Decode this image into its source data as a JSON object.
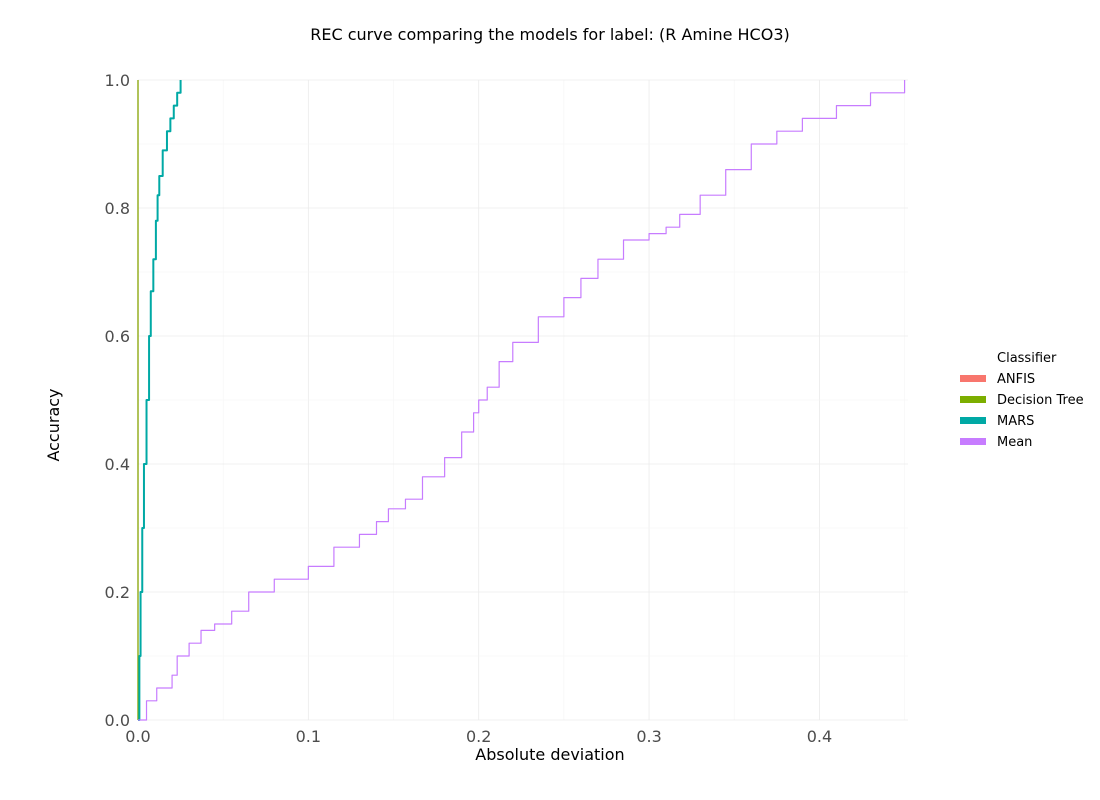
{
  "chart_data": {
    "type": "line",
    "title": "REC curve comparing the models for label: (R Amine HCO3)",
    "xlabel": "Absolute deviation",
    "ylabel": "Accuracy",
    "xlim": [
      0,
      0.452
    ],
    "ylim": [
      0,
      1.0
    ],
    "x_ticks": [
      "0.0",
      "0.1",
      "0.2",
      "0.3",
      "0.4"
    ],
    "y_ticks": [
      "0.0",
      "0.2",
      "0.4",
      "0.6",
      "0.8",
      "1.0"
    ],
    "grid": true,
    "legend": {
      "title": "Classifier",
      "placement": "right"
    },
    "series": [
      {
        "name": "ANFIS",
        "color": "#F8766D",
        "points": [
          [
            0.0,
            0.0
          ],
          [
            0.0,
            1.0
          ]
        ]
      },
      {
        "name": "Decision Tree",
        "color": "#7CAE00",
        "points": [
          [
            0.0,
            0.0
          ],
          [
            0.0,
            1.0
          ]
        ]
      },
      {
        "name": "MARS",
        "color": "#00A9A5",
        "points": [
          [
            0.0,
            0.0
          ],
          [
            0.0008,
            0.1
          ],
          [
            0.0015,
            0.2
          ],
          [
            0.0025,
            0.3
          ],
          [
            0.0035,
            0.4
          ],
          [
            0.005,
            0.5
          ],
          [
            0.0065,
            0.6
          ],
          [
            0.0075,
            0.67
          ],
          [
            0.009,
            0.72
          ],
          [
            0.0105,
            0.78
          ],
          [
            0.0115,
            0.82
          ],
          [
            0.0125,
            0.85
          ],
          [
            0.0145,
            0.89
          ],
          [
            0.017,
            0.92
          ],
          [
            0.019,
            0.94
          ],
          [
            0.021,
            0.96
          ],
          [
            0.023,
            0.98
          ],
          [
            0.025,
            1.0
          ]
        ]
      },
      {
        "name": "Mean",
        "color": "#C77CFF",
        "points": [
          [
            0.0,
            0.0
          ],
          [
            0.005,
            0.03
          ],
          [
            0.011,
            0.05
          ],
          [
            0.02,
            0.07
          ],
          [
            0.023,
            0.1
          ],
          [
            0.03,
            0.12
          ],
          [
            0.037,
            0.14
          ],
          [
            0.045,
            0.15
          ],
          [
            0.055,
            0.17
          ],
          [
            0.065,
            0.2
          ],
          [
            0.08,
            0.22
          ],
          [
            0.1,
            0.24
          ],
          [
            0.115,
            0.27
          ],
          [
            0.13,
            0.29
          ],
          [
            0.14,
            0.31
          ],
          [
            0.147,
            0.33
          ],
          [
            0.157,
            0.345
          ],
          [
            0.167,
            0.38
          ],
          [
            0.18,
            0.41
          ],
          [
            0.19,
            0.45
          ],
          [
            0.197,
            0.48
          ],
          [
            0.2,
            0.5
          ],
          [
            0.205,
            0.52
          ],
          [
            0.212,
            0.56
          ],
          [
            0.22,
            0.59
          ],
          [
            0.235,
            0.63
          ],
          [
            0.25,
            0.66
          ],
          [
            0.26,
            0.69
          ],
          [
            0.27,
            0.72
          ],
          [
            0.285,
            0.75
          ],
          [
            0.3,
            0.76
          ],
          [
            0.31,
            0.77
          ],
          [
            0.318,
            0.79
          ],
          [
            0.33,
            0.82
          ],
          [
            0.345,
            0.86
          ],
          [
            0.36,
            0.9
          ],
          [
            0.375,
            0.92
          ],
          [
            0.39,
            0.94
          ],
          [
            0.41,
            0.96
          ],
          [
            0.43,
            0.98
          ],
          [
            0.45,
            1.0
          ]
        ]
      }
    ]
  }
}
